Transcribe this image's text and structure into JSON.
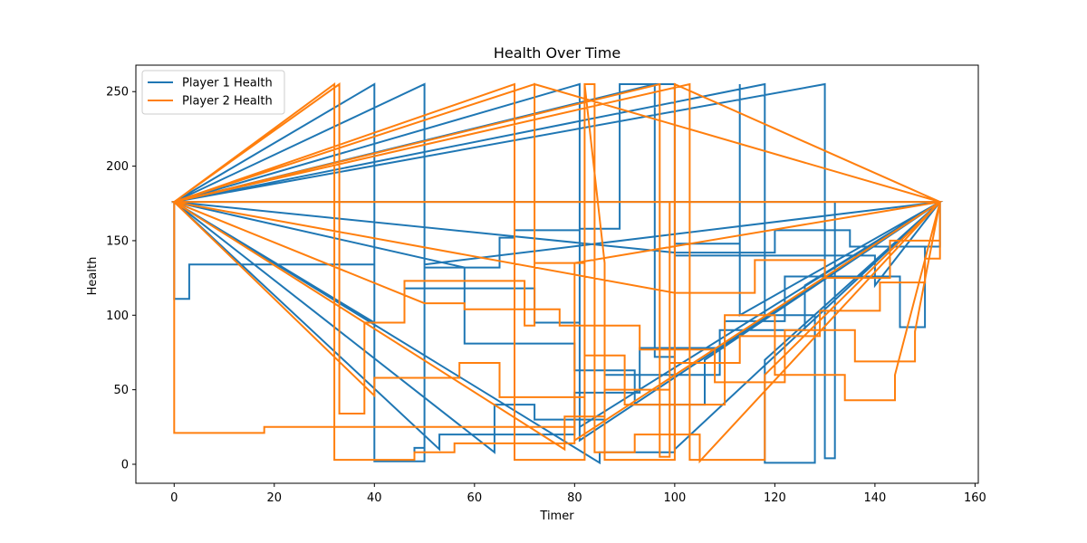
{
  "chart_data": {
    "type": "line",
    "title": "Health Over Time",
    "xlabel": "Timer",
    "ylabel": "Health",
    "xlim": [
      -7.65,
      160.65
    ],
    "ylim": [
      -12.75,
      267.75
    ],
    "xticks": [
      0,
      20,
      40,
      60,
      80,
      100,
      120,
      140,
      160
    ],
    "yticks": [
      0,
      50,
      100,
      150,
      200,
      250
    ],
    "grid": false,
    "legend_position": "top-left",
    "series": [
      {
        "name": "Player 1 Health",
        "color": "#1f77b4",
        "points": [
          [
            153,
            176
          ],
          [
            0,
            176
          ],
          [
            0,
            111
          ],
          [
            3,
            111
          ],
          [
            3,
            134
          ],
          [
            40,
            134
          ],
          [
            40,
            2
          ],
          [
            50,
            2
          ],
          [
            50,
            134
          ],
          [
            153,
            176
          ],
          [
            0,
            176
          ],
          [
            40,
            255
          ],
          [
            40,
            2
          ],
          [
            48,
            2
          ],
          [
            48,
            11
          ],
          [
            50,
            11
          ],
          [
            50,
            176
          ],
          [
            153,
            176
          ],
          [
            0,
            176
          ],
          [
            50,
            255
          ],
          [
            50,
            132
          ],
          [
            60,
            132
          ],
          [
            60,
            132
          ],
          [
            65,
            132
          ],
          [
            65,
            152
          ],
          [
            68,
            152
          ],
          [
            68,
            157
          ],
          [
            81,
            157
          ],
          [
            81,
            25
          ],
          [
            153,
            176
          ],
          [
            0,
            176
          ],
          [
            40,
            95
          ],
          [
            46,
            95
          ],
          [
            46,
            118
          ],
          [
            72,
            118
          ],
          [
            72,
            95
          ],
          [
            81,
            95
          ],
          [
            81,
            16
          ],
          [
            153,
            176
          ],
          [
            0,
            176
          ],
          [
            81,
            255
          ],
          [
            81,
            158
          ],
          [
            89,
            158
          ],
          [
            89,
            255
          ],
          [
            100,
            255
          ],
          [
            100,
            10
          ],
          [
            153,
            176
          ],
          [
            0,
            176
          ],
          [
            96,
            255
          ],
          [
            96,
            72
          ],
          [
            100,
            72
          ],
          [
            100,
            148
          ],
          [
            113,
            148
          ],
          [
            113,
            255
          ],
          [
            113,
            100
          ],
          [
            153,
            176
          ],
          [
            0,
            176
          ],
          [
            118,
            255
          ],
          [
            118,
            100
          ],
          [
            128,
            100
          ],
          [
            128,
            1
          ],
          [
            118,
            1
          ],
          [
            118,
            70
          ],
          [
            153,
            176
          ],
          [
            0,
            176
          ],
          [
            130,
            255
          ],
          [
            130,
            4
          ],
          [
            132,
            4
          ],
          [
            132,
            176
          ],
          [
            153,
            176
          ],
          [
            0,
            176
          ],
          [
            58,
            132
          ],
          [
            58,
            81
          ],
          [
            80,
            81
          ],
          [
            80,
            63
          ],
          [
            92,
            63
          ],
          [
            92,
            40
          ],
          [
            106,
            40
          ],
          [
            106,
            70
          ],
          [
            153,
            176
          ],
          [
            0,
            176
          ],
          [
            85,
            1
          ],
          [
            85,
            8
          ],
          [
            100,
            8
          ],
          [
            100,
            140
          ],
          [
            140,
            140
          ],
          [
            140,
            120
          ],
          [
            153,
            176
          ],
          [
            0,
            176
          ],
          [
            64,
            8
          ],
          [
            64,
            40
          ],
          [
            72,
            40
          ],
          [
            72,
            30
          ],
          [
            86,
            30
          ],
          [
            86,
            60
          ],
          [
            109,
            60
          ],
          [
            109,
            90
          ],
          [
            126,
            90
          ],
          [
            126,
            120
          ],
          [
            153,
            176
          ],
          [
            0,
            176
          ],
          [
            53,
            10
          ],
          [
            53,
            20
          ],
          [
            80,
            20
          ],
          [
            80,
            48
          ],
          [
            93,
            48
          ],
          [
            93,
            78
          ],
          [
            110,
            78
          ],
          [
            110,
            96
          ],
          [
            122,
            96
          ],
          [
            122,
            126
          ],
          [
            145,
            126
          ],
          [
            145,
            92
          ],
          [
            150,
            92
          ],
          [
            150,
            146
          ],
          [
            153,
            146
          ],
          [
            153,
            176
          ],
          [
            0,
            176
          ],
          [
            100,
            142
          ],
          [
            120,
            142
          ],
          [
            120,
            157
          ],
          [
            135,
            157
          ],
          [
            135,
            146
          ],
          [
            153,
            146
          ]
        ]
      },
      {
        "name": "Player 2 Health",
        "color": "#ff7f0e",
        "points": [
          [
            153,
            176
          ],
          [
            0,
            176
          ],
          [
            0,
            21
          ],
          [
            18,
            21
          ],
          [
            18,
            25
          ],
          [
            80,
            25
          ],
          [
            80,
            16
          ],
          [
            153,
            176
          ],
          [
            0,
            176
          ],
          [
            32,
            255
          ],
          [
            32,
            3
          ],
          [
            48,
            3
          ],
          [
            48,
            8
          ],
          [
            56,
            8
          ],
          [
            56,
            14
          ],
          [
            80,
            14
          ],
          [
            80,
            135
          ],
          [
            153,
            176
          ],
          [
            0,
            176
          ],
          [
            33,
            255
          ],
          [
            33,
            34
          ],
          [
            38,
            34
          ],
          [
            38,
            95
          ],
          [
            46,
            95
          ],
          [
            46,
            123
          ],
          [
            70,
            123
          ],
          [
            70,
            93
          ],
          [
            72,
            93
          ],
          [
            72,
            255
          ],
          [
            153,
            176
          ],
          [
            0,
            176
          ],
          [
            68,
            255
          ],
          [
            68,
            3
          ],
          [
            82,
            3
          ],
          [
            82,
            255
          ],
          [
            86,
            135
          ],
          [
            86,
            3
          ],
          [
            100,
            3
          ],
          [
            100,
            255
          ],
          [
            153,
            176
          ],
          [
            0,
            176
          ],
          [
            72,
            255
          ],
          [
            72,
            135
          ],
          [
            82,
            135
          ],
          [
            82,
            255
          ],
          [
            84,
            255
          ],
          [
            84,
            8
          ],
          [
            92,
            8
          ],
          [
            92,
            20
          ],
          [
            105,
            20
          ],
          [
            105,
            2
          ],
          [
            153,
            176
          ],
          [
            0,
            176
          ],
          [
            97,
            255
          ],
          [
            97,
            5
          ],
          [
            99,
            5
          ],
          [
            99,
            176
          ],
          [
            153,
            176
          ],
          [
            0,
            176
          ],
          [
            103,
            255
          ],
          [
            103,
            3
          ],
          [
            118,
            3
          ],
          [
            118,
            60
          ],
          [
            153,
            176
          ],
          [
            0,
            176
          ],
          [
            40,
            46
          ],
          [
            40,
            58
          ],
          [
            57,
            58
          ],
          [
            57,
            68
          ],
          [
            65,
            68
          ],
          [
            65,
            45
          ],
          [
            82,
            45
          ],
          [
            82,
            73
          ],
          [
            90,
            73
          ],
          [
            90,
            40
          ],
          [
            110,
            40
          ],
          [
            110,
            100
          ],
          [
            120,
            100
          ],
          [
            120,
            60
          ],
          [
            134,
            60
          ],
          [
            134,
            43
          ],
          [
            144,
            43
          ],
          [
            144,
            60
          ],
          [
            153,
            176
          ],
          [
            0,
            176
          ],
          [
            50,
            108
          ],
          [
            58,
            108
          ],
          [
            58,
            104
          ],
          [
            77,
            104
          ],
          [
            77,
            93
          ],
          [
            93,
            93
          ],
          [
            93,
            77
          ],
          [
            108,
            77
          ],
          [
            108,
            55
          ],
          [
            122,
            55
          ],
          [
            122,
            90
          ],
          [
            136,
            90
          ],
          [
            136,
            69
          ],
          [
            148,
            69
          ],
          [
            148,
            89
          ],
          [
            153,
            176
          ],
          [
            0,
            176
          ],
          [
            100,
            115
          ],
          [
            116,
            115
          ],
          [
            116,
            137
          ],
          [
            130,
            137
          ],
          [
            130,
            125
          ],
          [
            143,
            125
          ],
          [
            143,
            150
          ],
          [
            153,
            150
          ],
          [
            153,
            176
          ],
          [
            0,
            176
          ],
          [
            78,
            10
          ],
          [
            78,
            32
          ],
          [
            86,
            32
          ],
          [
            86,
            50
          ],
          [
            99,
            50
          ],
          [
            99,
            68
          ],
          [
            113,
            68
          ],
          [
            113,
            86
          ],
          [
            129,
            86
          ],
          [
            129,
            103
          ],
          [
            141,
            103
          ],
          [
            141,
            122
          ],
          [
            150,
            122
          ],
          [
            150,
            138
          ],
          [
            153,
            138
          ],
          [
            153,
            176
          ],
          [
            0,
            176
          ],
          [
            153,
            176
          ]
        ]
      }
    ]
  }
}
